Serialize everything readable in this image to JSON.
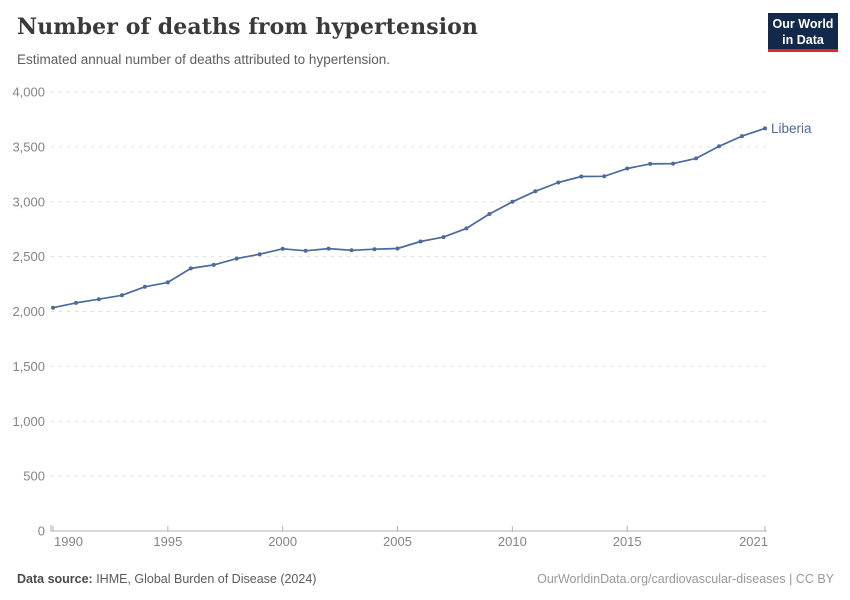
{
  "header": {
    "title": "Number of deaths from hypertension",
    "subtitle": "Estimated annual number of deaths attributed to hypertension.",
    "logo": {
      "line1": "Our World",
      "line2": "in Data",
      "bg_color": "#12294b",
      "accent_color": "#e0262c"
    }
  },
  "chart_data": {
    "type": "line",
    "title": "Number of deaths from hypertension",
    "x": [
      1990,
      1991,
      1992,
      1993,
      1994,
      1995,
      1996,
      1997,
      1998,
      1999,
      2000,
      2001,
      2002,
      2003,
      2004,
      2005,
      2006,
      2007,
      2008,
      2009,
      2010,
      2011,
      2012,
      2013,
      2014,
      2015,
      2016,
      2017,
      2018,
      2019,
      2020,
      2021
    ],
    "series": [
      {
        "name": "Liberia",
        "color": "#4c6a9c",
        "values": [
          2035,
          2078,
          2112,
          2148,
          2225,
          2265,
          2393,
          2425,
          2482,
          2522,
          2571,
          2553,
          2573,
          2558,
          2568,
          2574,
          2638,
          2678,
          2757,
          2888,
          3000,
          3095,
          3175,
          3230,
          3232,
          3303,
          3345,
          3348,
          3395,
          3505,
          3598,
          3668
        ]
      }
    ],
    "xlabel": "",
    "ylabel": "",
    "xlim": [
      1990,
      2021
    ],
    "ylim": [
      0,
      4000
    ],
    "x_ticks": [
      1990,
      1995,
      2000,
      2005,
      2010,
      2015,
      2021
    ],
    "y_ticks": [
      0,
      500,
      1000,
      1500,
      2000,
      2500,
      3000,
      3500,
      4000
    ],
    "grid": "horizontal-dashed",
    "legend_position": "end-of-line-label",
    "colors": {
      "gridline": "#dddddd",
      "axis": "#b0b0b0",
      "tick_label": "#858585"
    }
  },
  "footer": {
    "datasource_label": "Data source:",
    "datasource_value": " IHME, Global Burden of Disease (2024)",
    "credit": "OurWorldinData.org/cardiovascular-diseases | CC BY"
  }
}
